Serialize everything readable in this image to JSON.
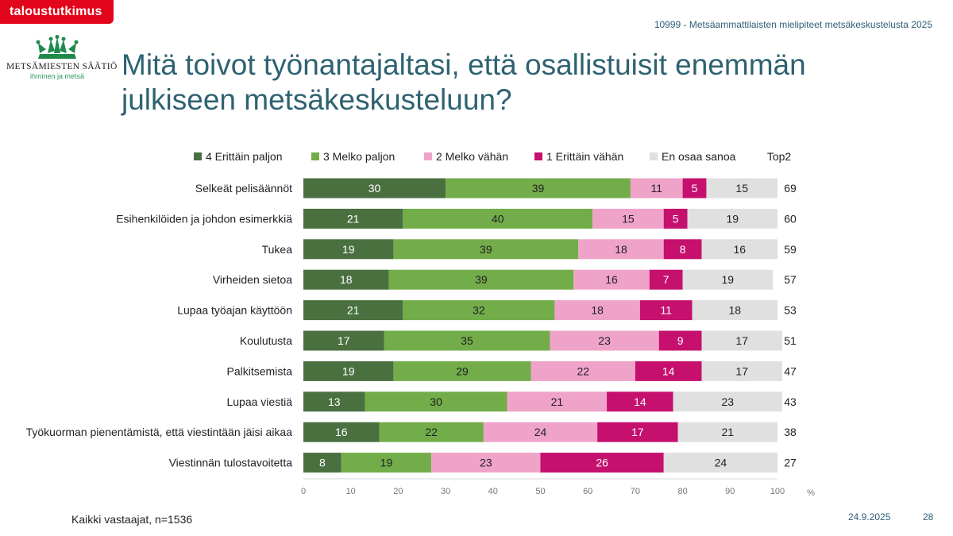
{
  "brand": {
    "badge": "taloustutkimus"
  },
  "study_title": "10999 - Metsäammattilaisten mielipiteet metsäkeskustelusta 2025",
  "logo": {
    "name": "METSÄMIESTEN SÄÄTIÖ",
    "tagline": "ihminen ja metsä"
  },
  "title": "Mitä toivot työnantajaltasi, että osallistuisit enemmän julkiseen metsäkeskusteluun?",
  "footer": {
    "note": "Kaikki vastaajat, n=1536",
    "date": "24.9.2025",
    "page": "28"
  },
  "chart_data": {
    "type": "bar",
    "orientation": "horizontal",
    "stacked": true,
    "categories": [
      "Selkeät pelisäännöt",
      "Esihenkilöiden ja johdon esimerkkiä",
      "Tukea",
      "Virheiden sietoa",
      "Lupaa työajan käyttöön",
      "Koulutusta",
      "Palkitsemista",
      "Lupaa viestiä",
      "Työkuorman pienentämistä, että viestintään jäisi aikaa",
      "Viestinnän tulostavoitetta"
    ],
    "series": [
      {
        "name": "4 Erittäin paljon",
        "color": "#4a7040",
        "text_color": "#ffffff",
        "values": [
          30,
          21,
          19,
          18,
          21,
          17,
          19,
          13,
          16,
          8
        ]
      },
      {
        "name": "3 Melko paljon",
        "color": "#72ad4a",
        "text_color": "#222222",
        "values": [
          39,
          40,
          39,
          39,
          32,
          35,
          29,
          30,
          22,
          19
        ]
      },
      {
        "name": "2 Melko vähän",
        "color": "#f0a3c9",
        "text_color": "#222222",
        "values": [
          11,
          15,
          18,
          16,
          18,
          23,
          22,
          21,
          24,
          23
        ]
      },
      {
        "name": "1 Erittäin vähän",
        "color": "#c5106e",
        "text_color": "#ffffff",
        "values": [
          5,
          5,
          8,
          7,
          11,
          9,
          14,
          14,
          17,
          26
        ]
      },
      {
        "name": "En osaa sanoa",
        "color": "#e0e0e0",
        "text_color": "#222222",
        "values": [
          15,
          19,
          16,
          19,
          18,
          17,
          17,
          23,
          21,
          24
        ]
      }
    ],
    "top2": {
      "label": "Top2",
      "values": [
        69,
        60,
        59,
        57,
        53,
        51,
        47,
        43,
        38,
        27
      ]
    },
    "xlim": [
      0,
      100
    ],
    "xticks": [
      0,
      10,
      20,
      30,
      40,
      50,
      60,
      70,
      80,
      90,
      100
    ],
    "xunit": "%",
    "legend_position": "top"
  }
}
